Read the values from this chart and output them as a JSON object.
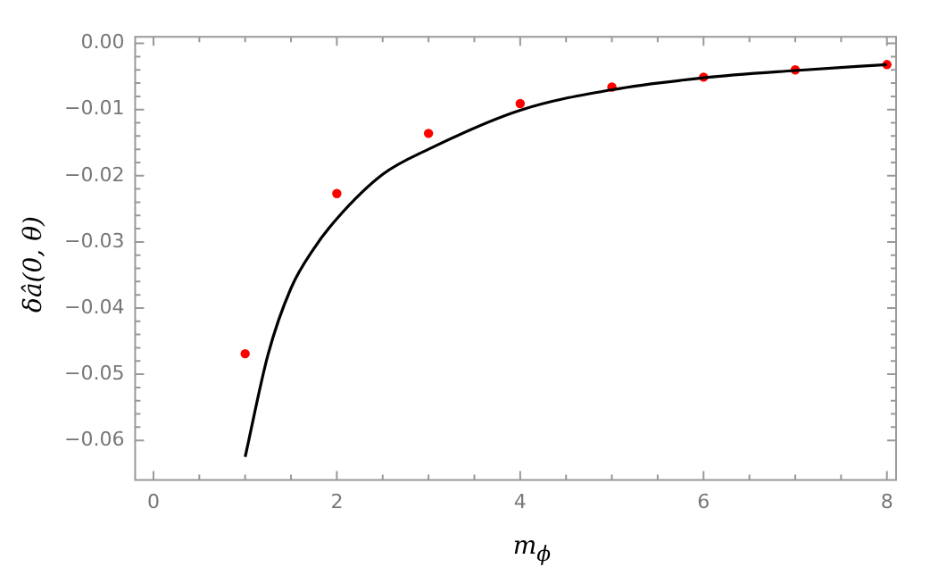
{
  "chart_data": {
    "type": "scatter",
    "xlabel": "m$_{ϕ}$",
    "ylabel": "δâ(0, θ)",
    "xlim": [
      -0.2,
      8.1
    ],
    "ylim": [
      -0.066,
      0.001
    ],
    "xticks": [
      0,
      2,
      4,
      6,
      8
    ],
    "yticks": [
      {
        "value": 0,
        "label": "0.00"
      },
      {
        "value": -0.01,
        "label": "−0.01"
      },
      {
        "value": -0.02,
        "label": "−0.02"
      },
      {
        "value": -0.03,
        "label": "−0.03"
      },
      {
        "value": -0.04,
        "label": "−0.04"
      },
      {
        "value": -0.05,
        "label": "−0.05"
      },
      {
        "value": -0.06,
        "label": "−0.06"
      }
    ],
    "grid": false,
    "legend": false,
    "series": [
      {
        "type": "line",
        "color": "#000000",
        "marker": "none",
        "line_style": "solid",
        "x": [
          1,
          1.25,
          1.5,
          1.75,
          2,
          2.5,
          3,
          4,
          5,
          6,
          7,
          8
        ],
        "values": [
          -0.0625,
          -0.047,
          -0.037,
          -0.031,
          -0.0265,
          -0.0198,
          -0.016,
          -0.0101,
          -0.007,
          -0.0052,
          -0.0041,
          -0.0032
        ]
      },
      {
        "type": "scatter",
        "color": "#ff0000",
        "marker": "circle",
        "x": [
          1,
          2,
          3,
          4,
          5,
          6,
          7,
          8
        ],
        "values": [
          -0.0469,
          -0.0227,
          -0.0136,
          -0.0091,
          -0.0066,
          -0.0051,
          -0.004,
          -0.0032
        ]
      }
    ]
  }
}
